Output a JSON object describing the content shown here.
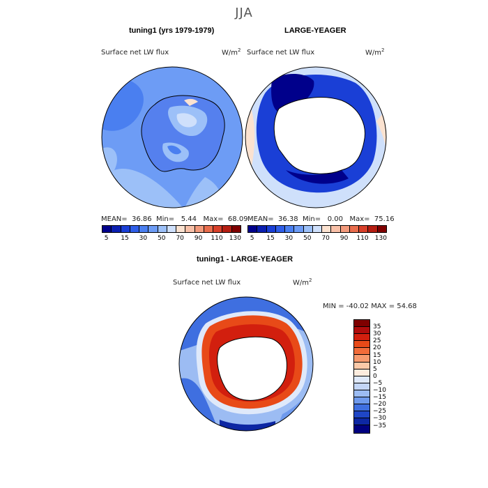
{
  "figure": {
    "season": "JJA",
    "variable": "Surface net LW flux",
    "units": "W/m",
    "units_exp": "2"
  },
  "panels": {
    "left": {
      "title": "tuning1 (yrs 1979-1979)",
      "mean_label": "MEAN=",
      "mean": "36.86",
      "min_label": "Min=",
      "min": "5.44",
      "max_label": "Max=",
      "max": "68.09"
    },
    "right": {
      "title": "LARGE-YEAGER",
      "mean_label": "MEAN=",
      "mean": "36.38",
      "min_label": "Min=",
      "min": "0.00",
      "max_label": "Max=",
      "max": "75.16"
    },
    "diff": {
      "title": "tuning1 - LARGE-YEAGER",
      "minmax": "MIN = -40.02 MAX =  54.68"
    }
  },
  "abs_colorbar": {
    "colors": [
      "#00008b",
      "#0b1fb0",
      "#1a3fd6",
      "#2f5ee8",
      "#4a7ff0",
      "#6d9cf5",
      "#9cc0f8",
      "#cfe0fb",
      "#fbe2d0",
      "#f8c0a8",
      "#f39a7c",
      "#e96d4d",
      "#d8402a",
      "#b51e12",
      "#7f0000"
    ],
    "labels": [
      "5",
      "15",
      "30",
      "50",
      "70",
      "90",
      "110",
      "130"
    ]
  },
  "diff_colorbar": {
    "colors": [
      "#7f0000",
      "#b00c0c",
      "#d21f0e",
      "#e84a18",
      "#f26c3a",
      "#f79a6e",
      "#fbc9a8",
      "#fdecde",
      "#dfe9fa",
      "#c3d6f7",
      "#9cbcf3",
      "#6f9aed",
      "#3f6fe0",
      "#1f46c6",
      "#0d27a3",
      "#000080"
    ],
    "labels": [
      "35",
      "30",
      "25",
      "20",
      "15",
      "10",
      "5",
      "0",
      "−5",
      "−10",
      "−15",
      "−20",
      "−25",
      "−30",
      "−35"
    ]
  }
}
